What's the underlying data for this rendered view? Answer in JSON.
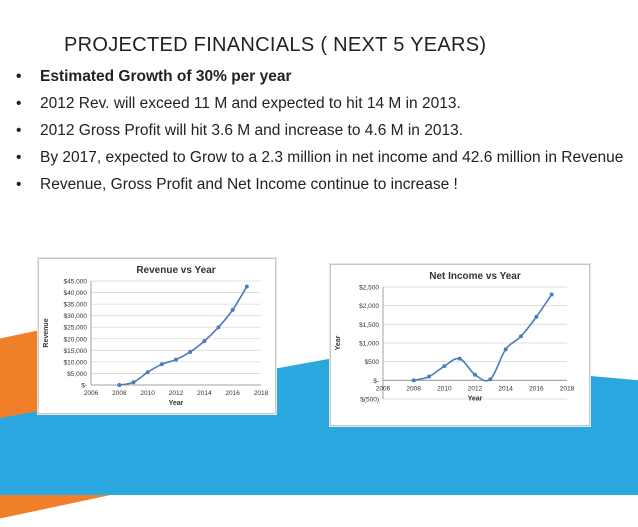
{
  "slide": {
    "title": "PROJECTED FINANCIALS ( NEXT 5 YEARS)",
    "bullet_glyph": "•",
    "bullets": [
      "Estimated Growth of 30% per year",
      "2012 Rev. will exceed 11 M and expected to hit 14 M in 2013.",
      "2012 Gross Profit will hit 3.6 M and increase to 4.6 M in 2013.",
      "By 2017, expected to Grow to a 2.3 million in net income and 42.6 million in Revenue",
      "Revenue, Gross Profit and Net Income continue to increase !"
    ],
    "colors": {
      "accent_blue": "#2aa7df",
      "accent_orange": "#f07f2a",
      "series": "#4a7ebb"
    }
  },
  "chart_data": [
    {
      "type": "line",
      "title": "Revenue vs Year",
      "xlabel": "Year",
      "ylabel": "Revenue",
      "xlim": [
        2006,
        2018
      ],
      "ylim": [
        0,
        45000
      ],
      "xticks": [
        "2006",
        "2008",
        "2010",
        "2012",
        "2014",
        "2016",
        "2018"
      ],
      "yticks": [
        "$-",
        "$5,000",
        "$10,000",
        "$15,000",
        "$20,000",
        "$25,000",
        "$30,000",
        "$35,000",
        "$40,000",
        "$45,000"
      ],
      "grid": true,
      "series": [
        {
          "x": [
            2008,
            2009,
            2010,
            2011,
            2012,
            2013,
            2014,
            2015,
            2016,
            2017
          ],
          "y": [
            0,
            1200,
            5500,
            9000,
            11000,
            14300,
            19000,
            25000,
            32500,
            42600
          ]
        }
      ]
    },
    {
      "type": "line",
      "title": "Net Income vs Year",
      "xlabel": "Year",
      "ylabel": "Year",
      "xlim": [
        2006,
        2018
      ],
      "ylim": [
        -500,
        2500
      ],
      "xticks": [
        "2006",
        "2008",
        "2010",
        "2012",
        "2014",
        "2016",
        "2018"
      ],
      "yticks": [
        "$(500)",
        "$-",
        "$500",
        "$1,000",
        "$1,500",
        "$2,000",
        "$2,500"
      ],
      "grid": true,
      "series": [
        {
          "x": [
            2008,
            2009,
            2010,
            2011,
            2012,
            2013,
            2014,
            2015,
            2016,
            2017
          ],
          "y": [
            0,
            100,
            380,
            580,
            150,
            30,
            830,
            1180,
            1700,
            2300
          ]
        }
      ]
    }
  ]
}
